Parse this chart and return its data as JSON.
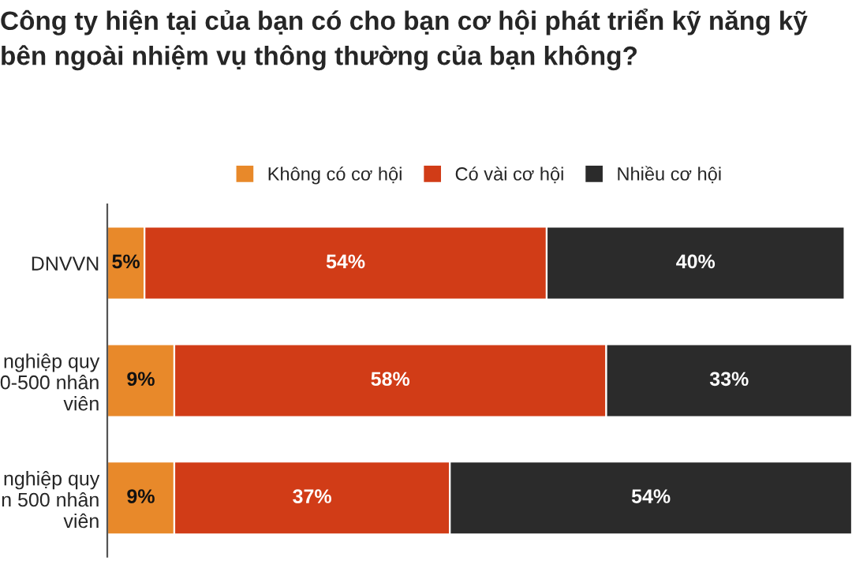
{
  "chart_data": {
    "type": "bar",
    "orientation": "horizontal",
    "stacked": true,
    "legend": "top",
    "grid": false,
    "tick_labels": "y",
    "title": "Công ty hiện tại của bạn có cho bạn cơ hội phát triển kỹ năng kỹ\nbên ngoài nhiệm vụ thông thường của bạn không?",
    "categories": [
      "DNVVN",
      "nghiệp quy\n0-500 nhân\nviên",
      "nghiệp quy\nn 500 nhân\nviên"
    ],
    "series": [
      {
        "name": "Không có cơ hội",
        "color": "#e8892a",
        "values": [
          5,
          9,
          9
        ],
        "value_labels": [
          "5%",
          "9%",
          "9%"
        ]
      },
      {
        "name": "Có vài cơ hội",
        "color": "#d13c17",
        "values": [
          54,
          58,
          37
        ],
        "value_labels": [
          "54%",
          "58%",
          "37%"
        ]
      },
      {
        "name": "Nhiều cơ hội",
        "color": "#2b2b2b",
        "values": [
          40,
          33,
          54
        ],
        "value_labels": [
          "40%",
          "33%",
          "54%"
        ]
      }
    ]
  }
}
